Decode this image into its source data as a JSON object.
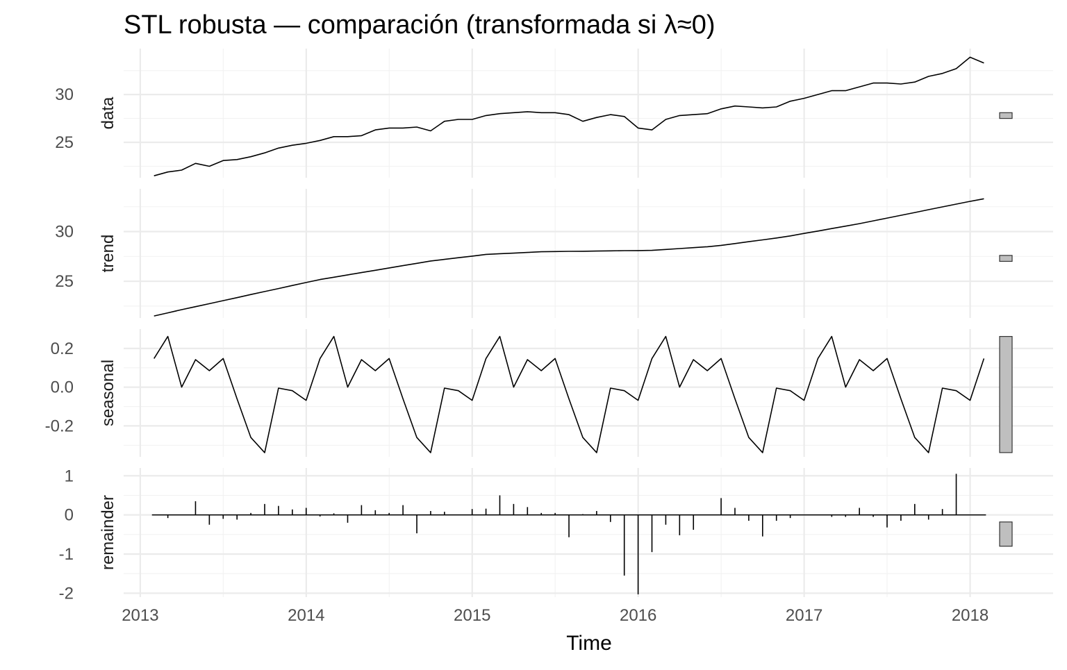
{
  "title": "STL robusta — comparación (transformada si λ≈0)",
  "chart_data": {
    "type": "line",
    "title": "STL robusta — comparación (transformada si λ≈0)",
    "xlabel": "Time",
    "x_ticks": [
      "2013",
      "2014",
      "2015",
      "2016",
      "2017",
      "2018"
    ],
    "xlim": [
      2012.9,
      2018.5
    ],
    "grid": true,
    "start": 2013.083,
    "frequency": 12,
    "panels": [
      {
        "name": "data",
        "label": "data",
        "ylim": [
          21.3,
          34.8
        ],
        "y_ticks": [
          25,
          30
        ],
        "y_tick_labels": [
          "25",
          "30"
        ],
        "minor_ticks": [
          22.5,
          27.5,
          32.5
        ],
        "range_bar": [
          27.5,
          28.1
        ],
        "style": "line",
        "values": [
          21.5,
          21.9,
          22.1,
          22.8,
          22.5,
          23.1,
          23.2,
          23.5,
          23.9,
          24.4,
          24.7,
          24.9,
          25.2,
          25.6,
          25.6,
          25.7,
          26.3,
          26.5,
          26.5,
          26.6,
          26.2,
          27.2,
          27.4,
          27.4,
          27.8,
          28.0,
          28.1,
          28.2,
          28.1,
          28.1,
          27.9,
          27.2,
          27.6,
          27.9,
          27.7,
          26.5,
          26.3,
          27.4,
          27.8,
          27.9,
          28.0,
          28.5,
          28.8,
          28.7,
          28.6,
          28.7,
          29.3,
          29.6,
          30.0,
          30.4,
          30.4,
          30.8,
          31.2,
          31.2,
          31.1,
          31.3,
          31.9,
          32.2,
          32.7,
          33.9,
          33.3
        ]
      },
      {
        "name": "trend",
        "label": "trend",
        "ylim": [
          21.3,
          34.3
        ],
        "y_ticks": [
          25,
          30
        ],
        "y_tick_labels": [
          "25",
          "30"
        ],
        "minor_ticks": [
          22.5,
          27.5,
          32.5
        ],
        "range_bar": [
          27.0,
          27.6
        ],
        "style": "line",
        "values": [
          21.5,
          21.82,
          22.14,
          22.44,
          22.74,
          23.05,
          23.35,
          23.66,
          23.96,
          24.26,
          24.57,
          24.87,
          25.17,
          25.4,
          25.64,
          25.87,
          26.1,
          26.34,
          26.57,
          26.8,
          27.04,
          27.2,
          27.37,
          27.53,
          27.7,
          27.77,
          27.83,
          27.9,
          27.97,
          27.99,
          28.01,
          28.02,
          28.04,
          28.06,
          28.08,
          28.09,
          28.11,
          28.2,
          28.29,
          28.38,
          28.47,
          28.61,
          28.79,
          28.98,
          29.16,
          29.35,
          29.56,
          29.81,
          30.05,
          30.3,
          30.55,
          30.8,
          31.08,
          31.36,
          31.64,
          31.92,
          32.2,
          32.48,
          32.76,
          33.04,
          33.3
        ]
      },
      {
        "name": "seasonal",
        "label": "seasonal",
        "ylim": [
          -0.36,
          0.3
        ],
        "y_ticks": [
          -0.2,
          0.0,
          0.2
        ],
        "y_tick_labels": [
          "-0.2",
          "0.0",
          "0.2"
        ],
        "minor_ticks": [
          -0.3,
          -0.1,
          0.1
        ],
        "range_bar": [
          -0.338,
          0.262
        ],
        "style": "line",
        "values": [
          0.148,
          0.262,
          0.0,
          0.142,
          0.085,
          0.148,
          -0.06,
          -0.26,
          -0.338,
          -0.005,
          -0.018,
          -0.068,
          0.148,
          0.262,
          0.0,
          0.142,
          0.085,
          0.148,
          -0.06,
          -0.26,
          -0.338,
          -0.005,
          -0.018,
          -0.068,
          0.148,
          0.262,
          0.0,
          0.142,
          0.085,
          0.148,
          -0.06,
          -0.26,
          -0.338,
          -0.005,
          -0.018,
          -0.068,
          0.148,
          0.262,
          0.0,
          0.142,
          0.085,
          0.148,
          -0.06,
          -0.26,
          -0.338,
          -0.005,
          -0.018,
          -0.068,
          0.148,
          0.262,
          0.0,
          0.142,
          0.085,
          0.148,
          -0.06,
          -0.26,
          -0.338,
          -0.005,
          -0.018,
          -0.068,
          0.148
        ]
      },
      {
        "name": "remainder",
        "label": "remainder",
        "ylim": [
          -2.1,
          1.2
        ],
        "y_ticks": [
          -2,
          -1,
          0,
          1
        ],
        "y_tick_labels": [
          "-2",
          "-1",
          "0",
          "1"
        ],
        "minor_ticks": [
          -1.5,
          -0.5,
          0.5
        ],
        "range_bar": [
          -0.8,
          -0.18
        ],
        "style": "spikes",
        "values": [
          0.0,
          -0.08,
          0.0,
          0.35,
          -0.25,
          -0.1,
          -0.12,
          0.05,
          0.28,
          0.23,
          0.14,
          0.18,
          -0.04,
          0.04,
          -0.2,
          0.25,
          0.12,
          0.05,
          0.25,
          -0.47,
          0.1,
          0.08,
          0.0,
          0.15,
          0.16,
          0.5,
          0.28,
          0.2,
          0.05,
          0.05,
          -0.57,
          0.02,
          0.1,
          -0.18,
          -1.55,
          -2.03,
          -0.95,
          -0.25,
          -0.52,
          -0.38,
          0.0,
          0.43,
          0.18,
          -0.15,
          -0.55,
          -0.15,
          -0.08,
          0.0,
          0.0,
          -0.05,
          -0.05,
          0.18,
          -0.05,
          -0.32,
          -0.15,
          0.28,
          -0.12,
          0.15,
          1.05,
          0.0,
          0.0
        ]
      }
    ]
  }
}
